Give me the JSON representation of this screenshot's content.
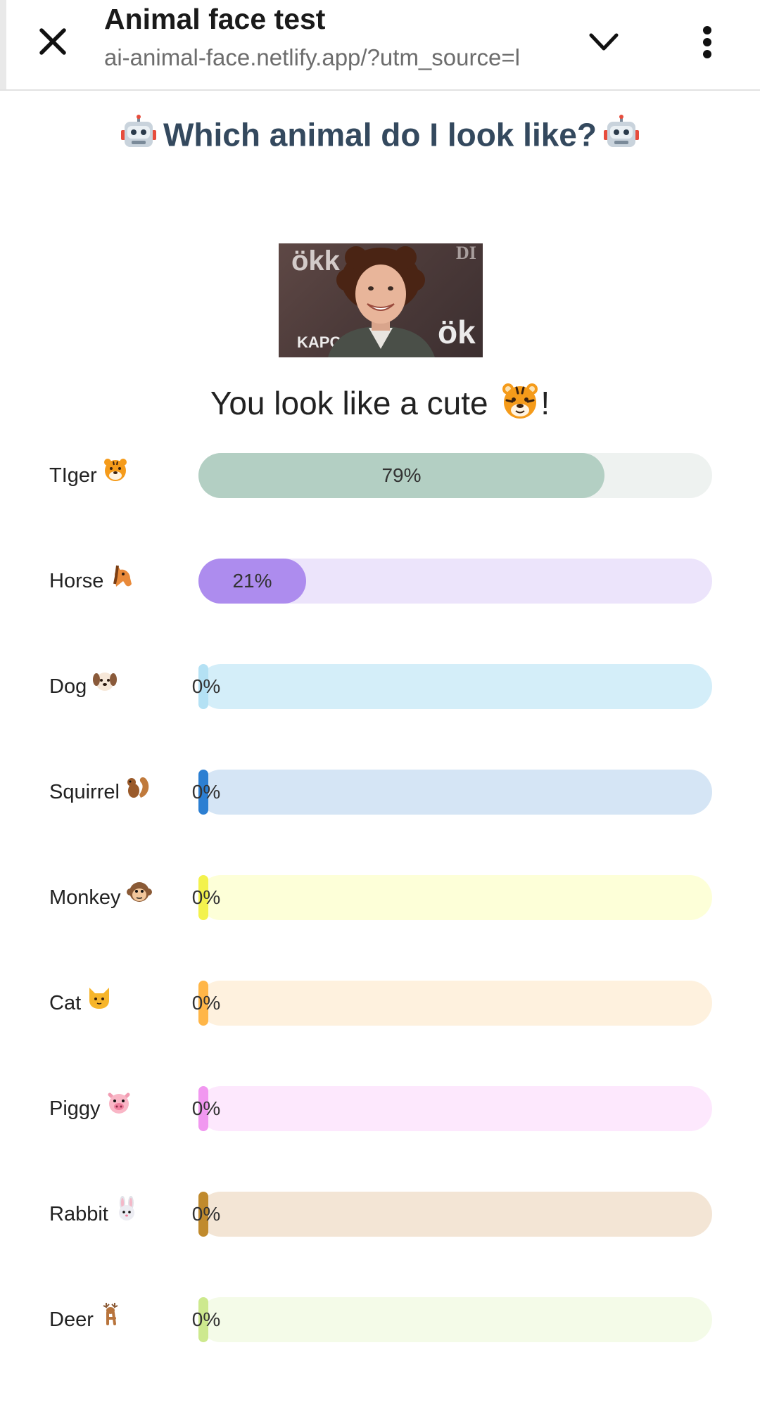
{
  "browser": {
    "title": "Animal face test",
    "url": "ai-animal-face.netlify.app/?utm_source=l"
  },
  "heading": "Which animal do I look like?",
  "photo_text": {
    "left": "ökk",
    "bottom": "KAPO",
    "right": "ök",
    "top_right": "DI"
  },
  "result": {
    "prefix": "You look like a cute",
    "suffix": "!"
  },
  "animals": [
    {
      "label": "TIger",
      "icon": "tiger-face-icon",
      "value": 0.79,
      "pct": "79%",
      "track": "#eef2f0",
      "fill": "#b3cfc3"
    },
    {
      "label": "Horse",
      "icon": "horse-face-icon",
      "value": 0.21,
      "pct": "21%",
      "track": "#ece4fb",
      "fill": "#ad8cee"
    },
    {
      "label": "Dog",
      "icon": "dog-face-icon",
      "value": 0,
      "pct": "0%",
      "track": "#d4eef9",
      "fill": "#b4e1f4"
    },
    {
      "label": "Squirrel",
      "icon": "squirrel-icon",
      "value": 0,
      "pct": "0%",
      "track": "#d5e5f5",
      "fill": "#2c7fd2"
    },
    {
      "label": "Monkey",
      "icon": "monkey-face-icon",
      "value": 0,
      "pct": "0%",
      "track": "#fdffd8",
      "fill": "#f3f24d"
    },
    {
      "label": "Cat",
      "icon": "cat-face-icon",
      "value": 0,
      "pct": "0%",
      "track": "#fef1de",
      "fill": "#ffb648"
    },
    {
      "label": "Piggy",
      "icon": "pig-face-icon",
      "value": 0,
      "pct": "0%",
      "track": "#fde8fd",
      "fill": "#f198f0"
    },
    {
      "label": "Rabbit",
      "icon": "rabbit-face-icon",
      "value": 0,
      "pct": "0%",
      "track": "#f3e5d5",
      "fill": "#c08a2d"
    },
    {
      "label": "Deer",
      "icon": "deer-icon",
      "value": 0,
      "pct": "0%",
      "track": "#f4fbe8",
      "fill": "#cde98e"
    }
  ],
  "colors": {
    "heading": "#34495e",
    "page_bg": "#ffffff"
  }
}
